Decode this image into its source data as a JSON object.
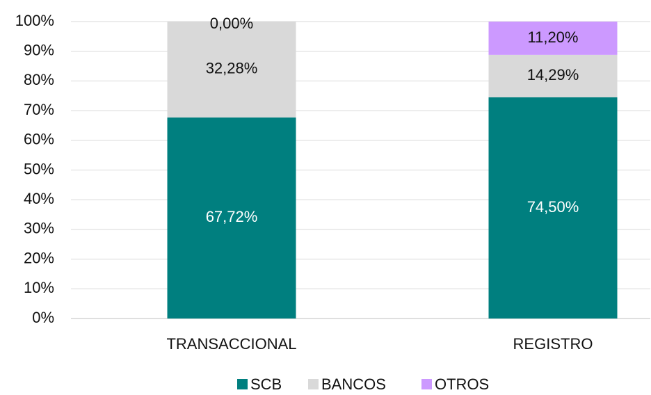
{
  "chart_data": {
    "type": "stacked_bar",
    "categories": [
      "TRANSACCIONAL",
      "REGISTRO"
    ],
    "series": [
      {
        "name": "SCB",
        "color": "#007f7f",
        "values": [
          67.72,
          74.5
        ],
        "value_labels": [
          "67,72%",
          "74,50%"
        ]
      },
      {
        "name": "BANCOS",
        "color": "#d9d9d9",
        "values": [
          32.28,
          14.29
        ],
        "value_labels": [
          "32,28%",
          "14,29%"
        ]
      },
      {
        "name": "OTROS",
        "color": "#cc99ff",
        "values": [
          0,
          11.2
        ],
        "value_labels": [
          "0,00%",
          "11,20%"
        ]
      }
    ],
    "ylim": [
      0,
      100
    ],
    "yticks": [
      {
        "value": 0,
        "label": "0%"
      },
      {
        "value": 10,
        "label": "10%"
      },
      {
        "value": 20,
        "label": "20%"
      },
      {
        "value": 30,
        "label": "30%"
      },
      {
        "value": 40,
        "label": "40%"
      },
      {
        "value": 50,
        "label": "50%"
      },
      {
        "value": 60,
        "label": "60%"
      },
      {
        "value": 70,
        "label": "70%"
      },
      {
        "value": 80,
        "label": "80%"
      },
      {
        "value": 90,
        "label": "90%"
      },
      {
        "value": 100,
        "label": "100%"
      }
    ],
    "grid": true,
    "legend": "bottom"
  }
}
